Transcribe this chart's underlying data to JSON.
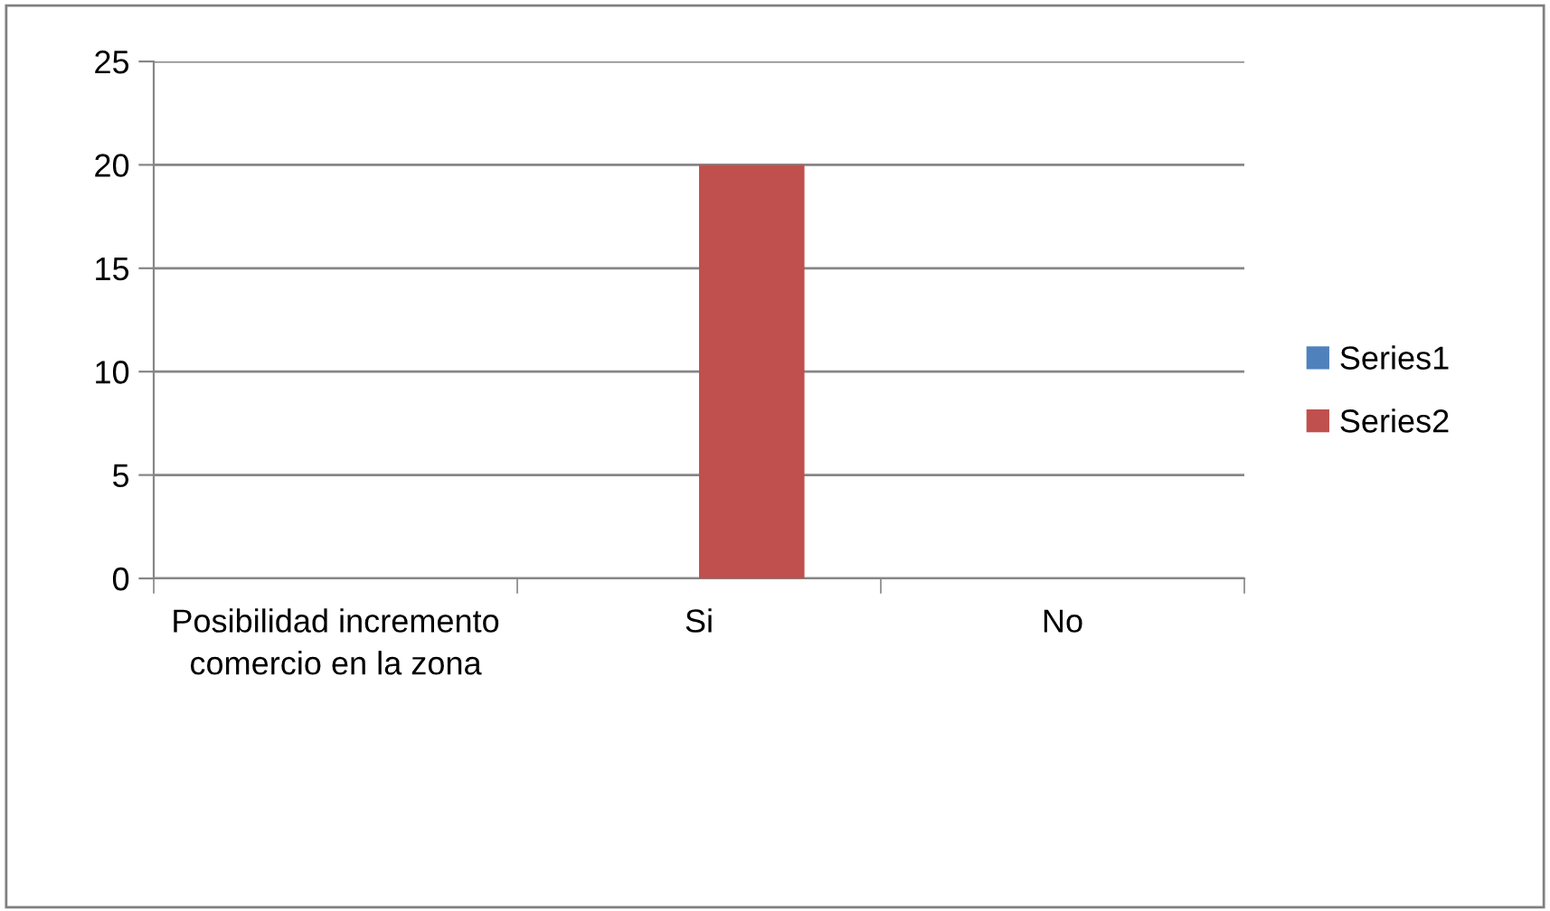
{
  "chart_data": {
    "type": "bar",
    "categories": [
      "Posibilidad incremento comercio en la zona",
      "Si",
      "No"
    ],
    "series": [
      {
        "name": "Series1",
        "color": "#4f81bd",
        "values": [
          null,
          null,
          null
        ]
      },
      {
        "name": "Series2",
        "color": "#c0504d",
        "values": [
          null,
          20,
          null
        ]
      }
    ],
    "ylim": [
      0,
      25
    ],
    "yticks": [
      0,
      5,
      10,
      15,
      20,
      25
    ],
    "grid": "y",
    "legend": "right"
  }
}
